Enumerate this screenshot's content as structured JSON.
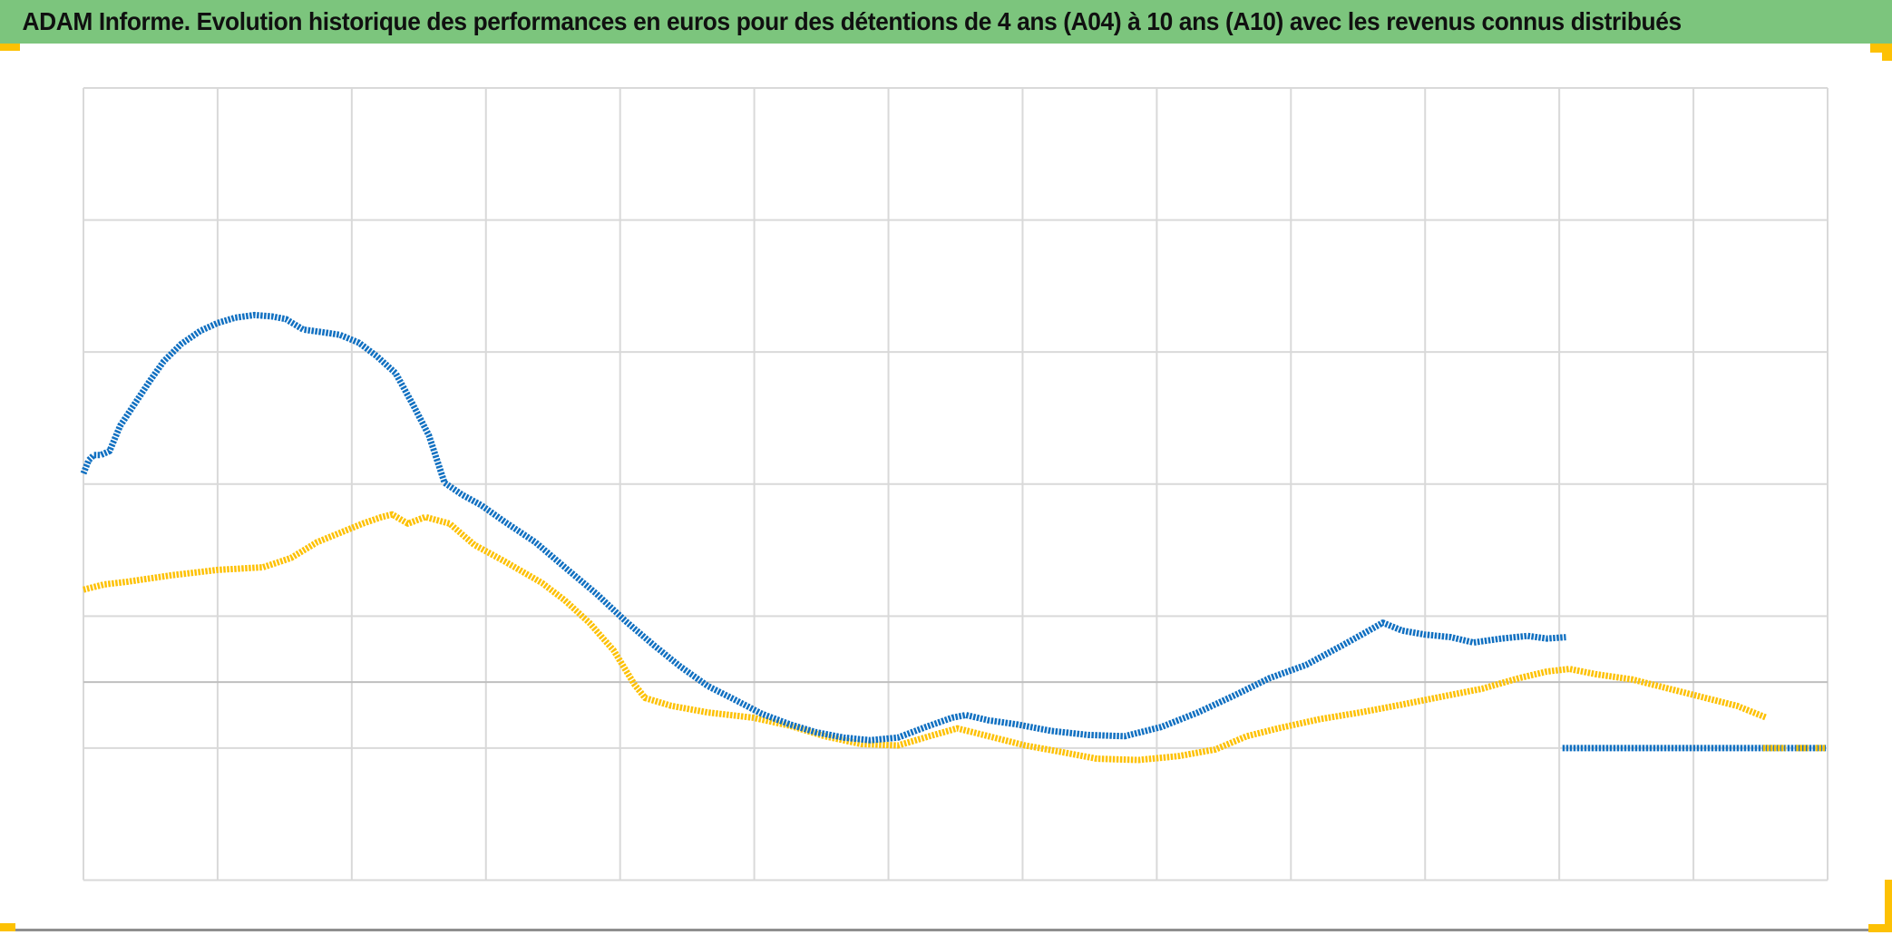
{
  "header": {
    "title": "ADAM Informe. Evolution historique des performances en euros pour des détentions de 4 ans (A04) à 10 ans (A10) avec les revenus connus distribués",
    "bg": "#7cc57d",
    "text_color": "#101010"
  },
  "accents": {
    "color": "#fdc104"
  },
  "footer": {
    "rule_color": "#8f8f8f"
  },
  "chart_data": {
    "type": "line",
    "title": "ADAM Informe. Evolution historique des performances en euros pour des détentions de 4 ans (A04) à 10 ans (A10) avec les revenus connus distribués",
    "grid": true,
    "legend_position": "none",
    "plot_bg": "#ffffff",
    "gridline_color": "#d9d9d9",
    "axis_line_color": "#bfbfbf",
    "x_axis": {
      "tick_labels_visible": false,
      "gridline_count": 14
    },
    "y_axis": {
      "tick_labels_visible": false,
      "min": 85,
      "max": 145,
      "major_unit": 10,
      "axis_line_at_value": 100
    },
    "series": [
      {
        "name": "gold-series",
        "color": "#fdc104",
        "points": [
          [
            0,
            107.0
          ],
          [
            1.2,
            107.4
          ],
          [
            2.5,
            107.6
          ],
          [
            5.1,
            108.1
          ],
          [
            7.7,
            108.5
          ],
          [
            10.3,
            108.7
          ],
          [
            11.9,
            109.4
          ],
          [
            13.4,
            110.6
          ],
          [
            14.7,
            111.3
          ],
          [
            16.0,
            112.0
          ],
          [
            17.1,
            112.5
          ],
          [
            17.7,
            112.7
          ],
          [
            18.6,
            112.0
          ],
          [
            19.6,
            112.5
          ],
          [
            21.0,
            112.0
          ],
          [
            22.4,
            110.4
          ],
          [
            24.2,
            109.1
          ],
          [
            26.3,
            107.5
          ],
          [
            27.6,
            106.2
          ],
          [
            29.0,
            104.5
          ],
          [
            30.4,
            102.4
          ],
          [
            31.6,
            99.8
          ],
          [
            32.2,
            98.8
          ],
          [
            33.7,
            98.2
          ],
          [
            35.8,
            97.7
          ],
          [
            38.4,
            97.3
          ],
          [
            40.5,
            96.7
          ],
          [
            42.5,
            95.9
          ],
          [
            44.6,
            95.3
          ],
          [
            46.7,
            95.2
          ],
          [
            48.5,
            95.9
          ],
          [
            50.1,
            96.5
          ],
          [
            51.9,
            95.9
          ],
          [
            54.0,
            95.2
          ],
          [
            56.1,
            94.7
          ],
          [
            58.1,
            94.2
          ],
          [
            60.5,
            94.1
          ],
          [
            62.8,
            94.4
          ],
          [
            64.9,
            94.9
          ],
          [
            66.7,
            95.9
          ],
          [
            68.5,
            96.5
          ],
          [
            70.9,
            97.2
          ],
          [
            73.2,
            97.7
          ],
          [
            75.6,
            98.3
          ],
          [
            77.9,
            98.9
          ],
          [
            80.2,
            99.5
          ],
          [
            82.3,
            100.3
          ],
          [
            83.9,
            100.8
          ],
          [
            85.2,
            101.0
          ],
          [
            86.7,
            100.6
          ],
          [
            88.8,
            100.2
          ],
          [
            90.9,
            99.5
          ],
          [
            93.0,
            98.8
          ],
          [
            94.8,
            98.2
          ],
          [
            96.5,
            97.3
          ]
        ]
      },
      {
        "name": "blue-series",
        "color": "#1170c1",
        "points": [
          [
            0,
            115.8
          ],
          [
            0.3,
            116.8
          ],
          [
            0.6,
            117.2
          ],
          [
            1.0,
            117.2
          ],
          [
            1.5,
            117.5
          ],
          [
            2.1,
            119.4
          ],
          [
            3.0,
            121.2
          ],
          [
            3.8,
            122.8
          ],
          [
            4.6,
            124.3
          ],
          [
            5.6,
            125.6
          ],
          [
            6.7,
            126.6
          ],
          [
            7.7,
            127.2
          ],
          [
            8.7,
            127.6
          ],
          [
            9.8,
            127.8
          ],
          [
            10.8,
            127.7
          ],
          [
            11.6,
            127.5
          ],
          [
            12.6,
            126.7
          ],
          [
            13.7,
            126.5
          ],
          [
            14.7,
            126.3
          ],
          [
            15.8,
            125.7
          ],
          [
            16.8,
            124.7
          ],
          [
            17.9,
            123.4
          ],
          [
            18.9,
            121.0
          ],
          [
            19.8,
            118.7
          ],
          [
            20.7,
            115.1
          ],
          [
            21.7,
            114.2
          ],
          [
            22.8,
            113.4
          ],
          [
            24.2,
            112.1
          ],
          [
            25.9,
            110.6
          ],
          [
            27.6,
            108.7
          ],
          [
            29.4,
            106.7
          ],
          [
            31.1,
            104.6
          ],
          [
            32.7,
            102.8
          ],
          [
            34.2,
            101.2
          ],
          [
            35.8,
            99.7
          ],
          [
            37.3,
            98.7
          ],
          [
            38.9,
            97.6
          ],
          [
            40.5,
            96.8
          ],
          [
            42.0,
            96.2
          ],
          [
            43.6,
            95.8
          ],
          [
            45.1,
            95.6
          ],
          [
            46.7,
            95.8
          ],
          [
            48.3,
            96.6
          ],
          [
            49.8,
            97.3
          ],
          [
            50.6,
            97.5
          ],
          [
            51.9,
            97.1
          ],
          [
            53.5,
            96.8
          ],
          [
            55.5,
            96.3
          ],
          [
            57.6,
            96.0
          ],
          [
            59.7,
            95.9
          ],
          [
            61.8,
            96.6
          ],
          [
            63.9,
            97.7
          ],
          [
            66.0,
            99.0
          ],
          [
            68.0,
            100.3
          ],
          [
            70.1,
            101.3
          ],
          [
            72.2,
            102.8
          ],
          [
            73.7,
            103.9
          ],
          [
            74.5,
            104.5
          ],
          [
            75.6,
            103.9
          ],
          [
            76.9,
            103.6
          ],
          [
            78.4,
            103.4
          ],
          [
            79.7,
            103.0
          ],
          [
            81.3,
            103.3
          ],
          [
            82.8,
            103.5
          ],
          [
            83.9,
            103.3
          ],
          [
            85.0,
            103.4
          ]
        ]
      },
      {
        "name": "flat-end-segment",
        "color": "#1170c1",
        "points": [
          [
            84.8,
            95.0
          ],
          [
            99.9,
            95.0
          ]
        ],
        "gold_overlay_color": "#fdc104",
        "gold_overlay_dashes_x_pct": [
          [
            96.3,
            97.6
          ],
          [
            98.2,
            98.9
          ],
          [
            99.3,
            99.9
          ]
        ]
      }
    ]
  }
}
